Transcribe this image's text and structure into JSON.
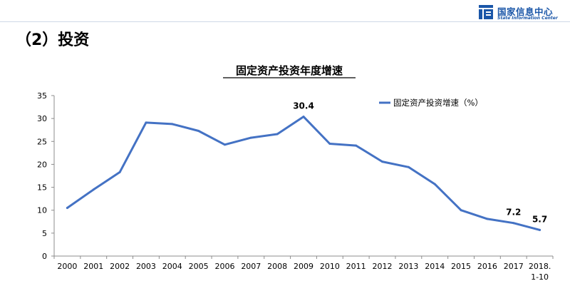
{
  "header": {
    "logo_cn": "国家信息中心",
    "logo_en": "State Information Center",
    "section_title": "（2）投资"
  },
  "colors": {
    "series": "#4472c4",
    "logo": "#1a56a8"
  },
  "chart_data": {
    "type": "line",
    "title": "固定资产投资年度增速",
    "xlabel": "",
    "ylabel": "",
    "categories": [
      "2000",
      "2001",
      "2002",
      "2003",
      "2004",
      "2005",
      "2006",
      "2007",
      "2008",
      "2009",
      "2010",
      "2011",
      "2012",
      "2013",
      "2014",
      "2015",
      "2016",
      "2017",
      "2018.\n1-10"
    ],
    "series": [
      {
        "name": "固定资产投资增速（%）",
        "values": [
          10.5,
          14.5,
          18.3,
          29.1,
          28.8,
          27.3,
          24.3,
          25.8,
          26.6,
          30.4,
          24.5,
          24.1,
          20.6,
          19.4,
          15.7,
          10.0,
          8.1,
          7.2,
          5.7
        ]
      }
    ],
    "data_labels": [
      {
        "category": "2009",
        "text": "30.4"
      },
      {
        "category": "2017",
        "text": "7.2"
      },
      {
        "category": "2018.\n1-10",
        "text": "5.7"
      }
    ],
    "ylim": [
      0,
      35
    ],
    "yticks": [
      0,
      5,
      10,
      15,
      20,
      25,
      30,
      35
    ],
    "grid": false,
    "legend_position": "top-right"
  }
}
